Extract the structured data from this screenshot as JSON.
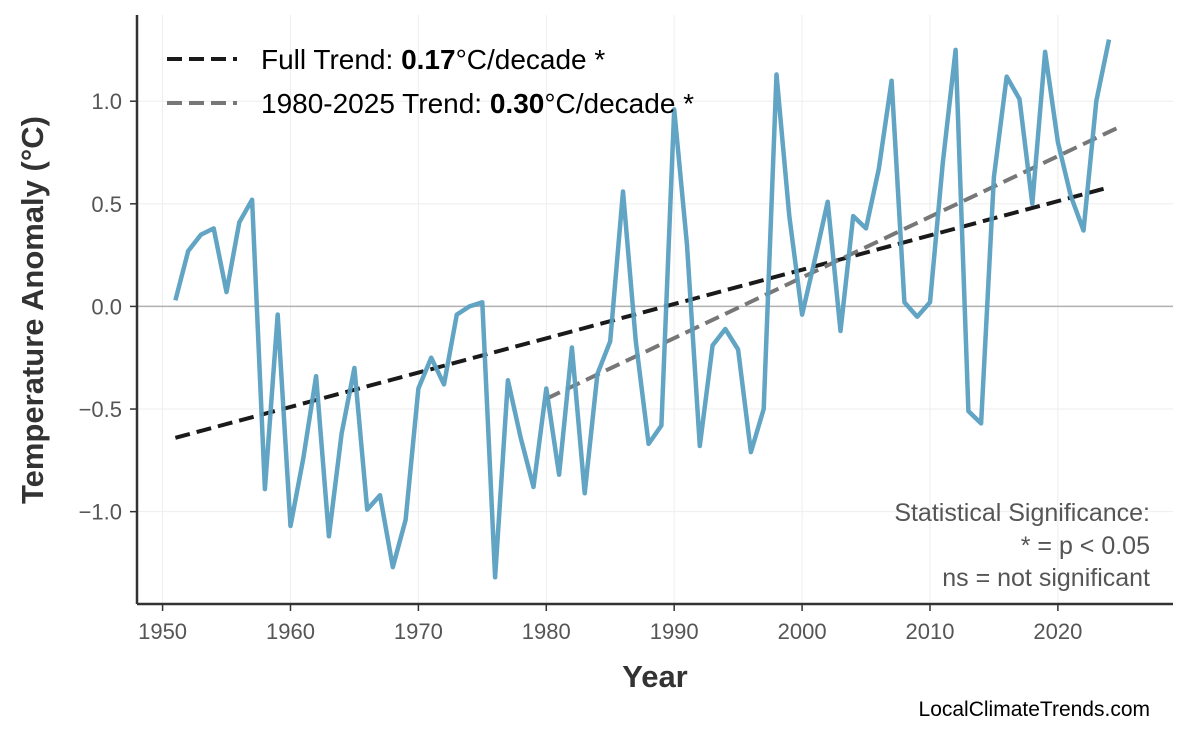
{
  "chart_data": {
    "type": "line",
    "title": "",
    "xlabel": "Year",
    "ylabel": "Temperature Anomaly (°C)",
    "xlim": [
      1948,
      2029
    ],
    "ylim": [
      -1.45,
      1.42
    ],
    "grid": true,
    "legend_position": "top-left",
    "x_ticks": [
      1950,
      1960,
      1970,
      1980,
      1990,
      2000,
      2010,
      2020
    ],
    "x_tick_labels": [
      "1950",
      "1960",
      "1970",
      "1980",
      "1990",
      "2000",
      "2010",
      "2020"
    ],
    "y_ticks": [
      1.0,
      0.5,
      0.0,
      -0.5,
      -1.0
    ],
    "y_tick_labels": [
      "1.0",
      "0.5",
      "0.0",
      "−0.5",
      "−1.0"
    ],
    "series": [
      {
        "color": "#5a9fc0",
        "x": [
          1951,
          1952,
          1953,
          1954,
          1955,
          1956,
          1957,
          1958,
          1959,
          1960,
          1961,
          1962,
          1963,
          1964,
          1965,
          1966,
          1967,
          1968,
          1969,
          1970,
          1971,
          1972,
          1973,
          1974,
          1975,
          1976,
          1977,
          1978,
          1979,
          1980,
          1981,
          1982,
          1983,
          1984,
          1985,
          1986,
          1987,
          1988,
          1989,
          1990,
          1991,
          1992,
          1993,
          1994,
          1995,
          1996,
          1997,
          1998,
          1999,
          2000,
          2001,
          2002,
          2003,
          2004,
          2005,
          2006,
          2007,
          2008,
          2009,
          2010,
          2011,
          2012,
          2013,
          2014,
          2015,
          2016,
          2017,
          2018,
          2019,
          2020,
          2021,
          2022,
          2023,
          2024
        ],
        "y": [
          0.03,
          0.27,
          0.35,
          0.38,
          0.07,
          0.41,
          0.52,
          -0.89,
          -0.04,
          -1.07,
          -0.74,
          -0.34,
          -1.12,
          -0.62,
          -0.3,
          -0.99,
          -0.92,
          -1.27,
          -1.04,
          -0.4,
          -0.25,
          -0.38,
          -0.04,
          0.0,
          0.02,
          -1.32,
          -0.36,
          -0.64,
          -0.88,
          -0.4,
          -0.82,
          -0.2,
          -0.91,
          -0.33,
          -0.17,
          0.56,
          -0.17,
          -0.67,
          -0.58,
          0.96,
          0.3,
          -0.68,
          -0.19,
          -0.11,
          -0.21,
          -0.71,
          -0.5,
          1.13,
          0.44,
          -0.04,
          0.23,
          0.51,
          -0.12,
          0.44,
          0.38,
          0.67,
          1.1,
          0.02,
          -0.05,
          0.02,
          0.7,
          1.25,
          -0.51,
          -0.57,
          0.63,
          1.12,
          1.01,
          0.5,
          1.24,
          0.8,
          0.54,
          0.37,
          1.0,
          1.3
        ]
      }
    ],
    "trends": [
      {
        "label_prefix": "Full Trend: ",
        "value": "0.17",
        "label_suffix": "°C/decade *",
        "color": "#1a1a1a",
        "x": [
          1951,
          2024
        ],
        "y": [
          -0.64,
          0.58
        ]
      },
      {
        "label_prefix": "1980-2025 Trend: ",
        "value": "0.30",
        "label_suffix": "°C/decade *",
        "color": "#777777",
        "x": [
          1980,
          2025
        ],
        "y": [
          -0.45,
          0.88
        ]
      }
    ],
    "annotation": [
      "Statistical Significance:",
      "* = p < 0.05",
      "ns = not significant"
    ],
    "watermark": "LocalClimateTrends.com"
  }
}
